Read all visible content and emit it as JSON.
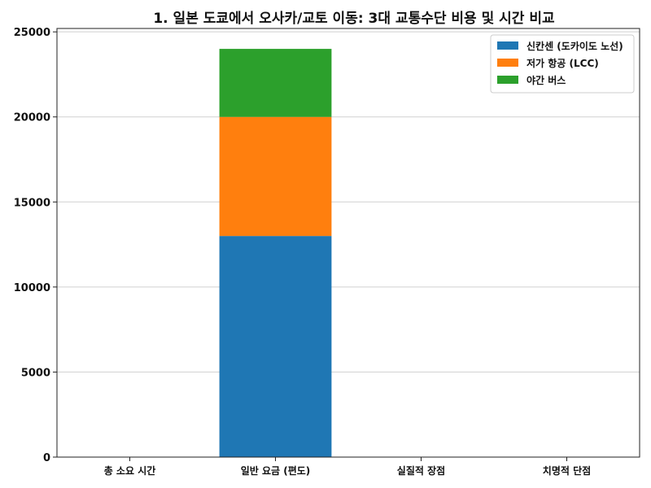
{
  "chart_data": {
    "type": "bar",
    "stacked": true,
    "title": "1. 일본 도쿄에서 오사카/교토 이동: 3대 교통수단 비용 및 시간 비교",
    "xlabel": "",
    "ylabel": "",
    "categories": [
      "총 소요 시간",
      "일반 요금 (편도)",
      "실질적 장점",
      "치명적 단점"
    ],
    "series": [
      {
        "name": "신칸센 (도카이도 노선)",
        "color": "#1f77b4",
        "values": [
          0,
          13000,
          0,
          0
        ]
      },
      {
        "name": "저가 항공 (LCC)",
        "color": "#ff7f0e",
        "values": [
          0,
          7000,
          0,
          0
        ]
      },
      {
        "name": "야간 버스",
        "color": "#2ca02c",
        "values": [
          0,
          4000,
          0,
          0
        ]
      }
    ],
    "ylim": [
      0,
      25200
    ],
    "yticks": [
      0,
      5000,
      10000,
      15000,
      20000,
      25000
    ],
    "ytick_labels": [
      "0",
      "5000",
      "10000",
      "15000",
      "20000",
      "25000"
    ],
    "grid": "y",
    "legend_position": "top-right"
  }
}
